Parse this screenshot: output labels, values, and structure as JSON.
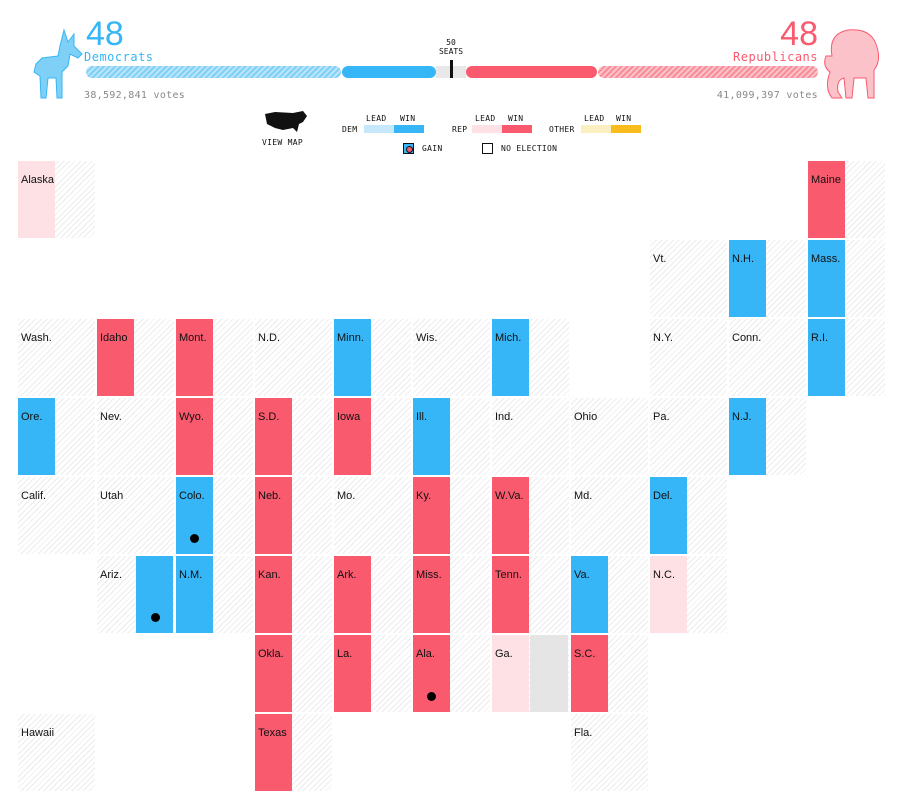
{
  "header": {
    "dem": {
      "count": "48",
      "label": "Democrats",
      "votes": "38,592,841 votes",
      "color": "#36b6f6"
    },
    "rep": {
      "count": "48",
      "label": "Republicans",
      "votes": "41,099,397 votes",
      "color": "#fa5a6e"
    },
    "seats_label": "50\nSEATS",
    "icons": [
      "donkey-icon",
      "elephant-icon"
    ]
  },
  "legend": {
    "view_map": "VIEW MAP",
    "dem": "DEM",
    "rep": "REP",
    "other": "OTHER",
    "lead": "LEAD",
    "win": "WIN",
    "gain": "GAIN",
    "no_election": "NO ELECTION",
    "colors": {
      "dem_lead": "#c7e8fb",
      "dem_win": "#36b6f6",
      "rep_lead": "#fde1e4",
      "rep_win": "#fa5a6e",
      "other_lead": "#fbeec0",
      "other_win": "#f8bd1c"
    }
  },
  "states": [
    {
      "name": "Alaska",
      "row": 0,
      "col": 0,
      "status": "rep-lead"
    },
    {
      "name": "Maine",
      "row": 0,
      "col": 10,
      "status": "rep-win"
    },
    {
      "name": "Vt.",
      "row": 1,
      "col": 8,
      "status": "none"
    },
    {
      "name": "N.H.",
      "row": 1,
      "col": 9,
      "status": "dem-win"
    },
    {
      "name": "Mass.",
      "row": 1,
      "col": 10,
      "status": "dem-win"
    },
    {
      "name": "Wash.",
      "row": 2,
      "col": 0,
      "status": "none"
    },
    {
      "name": "Idaho",
      "row": 2,
      "col": 1,
      "status": "rep-win"
    },
    {
      "name": "Mont.",
      "row": 2,
      "col": 2,
      "status": "rep-win"
    },
    {
      "name": "N.D.",
      "row": 2,
      "col": 3,
      "status": "none"
    },
    {
      "name": "Minn.",
      "row": 2,
      "col": 4,
      "status": "dem-win"
    },
    {
      "name": "Wis.",
      "row": 2,
      "col": 5,
      "status": "none"
    },
    {
      "name": "Mich.",
      "row": 2,
      "col": 6,
      "status": "dem-win"
    },
    {
      "name": "N.Y.",
      "row": 2,
      "col": 8,
      "status": "none"
    },
    {
      "name": "Conn.",
      "row": 2,
      "col": 9,
      "status": "none"
    },
    {
      "name": "R.I.",
      "row": 2,
      "col": 10,
      "status": "dem-win"
    },
    {
      "name": "Ore.",
      "row": 3,
      "col": 0,
      "status": "dem-win"
    },
    {
      "name": "Nev.",
      "row": 3,
      "col": 1,
      "status": "none"
    },
    {
      "name": "Wyo.",
      "row": 3,
      "col": 2,
      "status": "rep-win"
    },
    {
      "name": "S.D.",
      "row": 3,
      "col": 3,
      "status": "rep-win"
    },
    {
      "name": "Iowa",
      "row": 3,
      "col": 4,
      "status": "rep-win"
    },
    {
      "name": "Ill.",
      "row": 3,
      "col": 5,
      "status": "dem-win"
    },
    {
      "name": "Ind.",
      "row": 3,
      "col": 6,
      "status": "none"
    },
    {
      "name": "Ohio",
      "row": 3,
      "col": 7,
      "status": "none"
    },
    {
      "name": "Pa.",
      "row": 3,
      "col": 8,
      "status": "none"
    },
    {
      "name": "N.J.",
      "row": 3,
      "col": 9,
      "status": "dem-win"
    },
    {
      "name": "Calif.",
      "row": 4,
      "col": 0,
      "status": "none"
    },
    {
      "name": "Utah",
      "row": 4,
      "col": 1,
      "status": "none"
    },
    {
      "name": "Colo.",
      "row": 4,
      "col": 2,
      "status": "dem-win",
      "gain": true
    },
    {
      "name": "Neb.",
      "row": 4,
      "col": 3,
      "status": "rep-win"
    },
    {
      "name": "Mo.",
      "row": 4,
      "col": 4,
      "status": "none"
    },
    {
      "name": "Ky.",
      "row": 4,
      "col": 5,
      "status": "rep-win"
    },
    {
      "name": "W.Va.",
      "row": 4,
      "col": 6,
      "status": "rep-win"
    },
    {
      "name": "Md.",
      "row": 4,
      "col": 7,
      "status": "none"
    },
    {
      "name": "Del.",
      "row": 4,
      "col": 8,
      "status": "dem-win"
    },
    {
      "name": "Ariz.",
      "row": 5,
      "col": 1,
      "status": "none",
      "extra": "dem-win-gain"
    },
    {
      "name": "N.M.",
      "row": 5,
      "col": 2,
      "status": "dem-win"
    },
    {
      "name": "Kan.",
      "row": 5,
      "col": 3,
      "status": "rep-win"
    },
    {
      "name": "Ark.",
      "row": 5,
      "col": 4,
      "status": "rep-win"
    },
    {
      "name": "Miss.",
      "row": 5,
      "col": 5,
      "status": "rep-win"
    },
    {
      "name": "Tenn.",
      "row": 5,
      "col": 6,
      "status": "rep-win"
    },
    {
      "name": "Va.",
      "row": 5,
      "col": 7,
      "status": "dem-win"
    },
    {
      "name": "N.C.",
      "row": 5,
      "col": 8,
      "status": "rep-lead"
    },
    {
      "name": "Okla.",
      "row": 6,
      "col": 3,
      "status": "rep-win"
    },
    {
      "name": "La.",
      "row": 6,
      "col": 4,
      "status": "rep-win"
    },
    {
      "name": "Ala.",
      "row": 6,
      "col": 5,
      "status": "rep-win",
      "gain": true
    },
    {
      "name": "Ga.",
      "row": 6,
      "col": 6,
      "status": "rep-lead",
      "second": "gray"
    },
    {
      "name": "S.C.",
      "row": 6,
      "col": 7,
      "status": "rep-win"
    },
    {
      "name": "Hawaii",
      "row": 7,
      "col": 0,
      "status": "none"
    },
    {
      "name": "Texas",
      "row": 7,
      "col": 3,
      "status": "rep-win"
    },
    {
      "name": "Fla.",
      "row": 7,
      "col": 7,
      "status": "none"
    }
  ]
}
